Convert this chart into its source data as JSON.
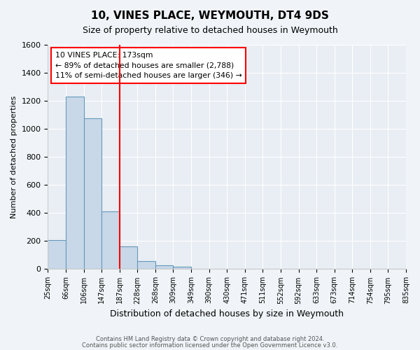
{
  "title": "10, VINES PLACE, WEYMOUTH, DT4 9DS",
  "subtitle": "Size of property relative to detached houses in Weymouth",
  "xlabel": "Distribution of detached houses by size in Weymouth",
  "ylabel": "Number of detached properties",
  "bin_labels": [
    "25sqm",
    "66sqm",
    "106sqm",
    "147sqm",
    "187sqm",
    "228sqm",
    "268sqm",
    "309sqm",
    "349sqm",
    "390sqm",
    "430sqm",
    "471sqm",
    "511sqm",
    "552sqm",
    "592sqm",
    "633sqm",
    "673sqm",
    "714sqm",
    "754sqm",
    "795sqm",
    "835sqm"
  ],
  "bar_heights": [
    205,
    1230,
    1075,
    410,
    160,
    55,
    25,
    15,
    0,
    0,
    0,
    0,
    0,
    0,
    0,
    0,
    0,
    0,
    0,
    0
  ],
  "bar_color": "#c8d8e8",
  "bar_edge_color": "#6699bb",
  "ylim": [
    0,
    1600
  ],
  "yticks": [
    0,
    200,
    400,
    600,
    800,
    1000,
    1200,
    1400,
    1600
  ],
  "vline_x": 4.0,
  "vline_color": "red",
  "annotation_title": "10 VINES PLACE: 173sqm",
  "annotation_line1": "← 89% of detached houses are smaller (2,788)",
  "annotation_line2": "11% of semi-detached houses are larger (346) →",
  "footer1": "Contains HM Land Registry data © Crown copyright and database right 2024.",
  "footer2": "Contains public sector information licensed under the Open Government Licence v3.0.",
  "background_color": "#f0f4f8",
  "plot_bg_color": "#e8eef4"
}
